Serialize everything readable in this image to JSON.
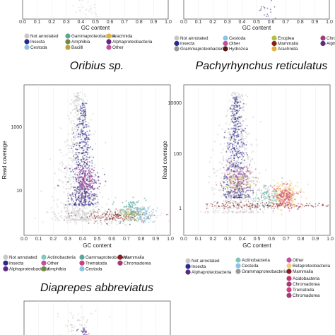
{
  "colors": {
    "Not annotated": "#c8c8c8",
    "Insecta": "#2b2a8c",
    "Cestoda": "#8fc3e6",
    "Gammaproteobacteria": "#5aa59a",
    "Amphibia": "#6e8a3a",
    "Bacilli": "#b7a43a",
    "Arachnida": "#e3b23c",
    "Alphaproteobacteria": "#5a2a80",
    "Other": "#c04fa0",
    "Actinobacteria": "#7ec8c0",
    "Trematoda": "#d04080",
    "Mammalia": "#8a1e1e",
    "Chromadorea": "#a03c78",
    "Enoplea": "#b0c040",
    "Hydrozoa": "#5a1a1a",
    "Betaproteobacteria": "#f0d080",
    "Acidobacteria": "#c23a6a"
  },
  "chart_data": [
    {
      "type": "scatter",
      "title": "",
      "xlabel": "GC content",
      "xticks": [
        "0.0",
        "0.1",
        "0.2",
        "0.3",
        "0.4",
        "0.5",
        "0.6",
        "0.7",
        "0.8",
        "0.9",
        "1.0"
      ],
      "legend": [
        "Not annotated",
        "Insecta",
        "Cestoda",
        "Gammaproteobacteria",
        "Amphibia",
        "Bacilli",
        "Arachnida",
        "Alphaproteobacteria",
        "Other"
      ]
    },
    {
      "type": "scatter",
      "title": "",
      "xlabel": "GC content",
      "xticks": [
        "0.0",
        "0.1",
        "0.2",
        "0.3",
        "0.4",
        "0.5",
        "0.6",
        "0.7",
        "0.8",
        "0.9",
        "1.0"
      ],
      "legend": [
        "Not annotated",
        "Insecta",
        "Grammaproteobacteria",
        "Cestoda",
        "Other",
        "Hydrozoa",
        "Enoplea",
        "Mammalia",
        "Arachnida",
        "Chromadorea",
        "Alphaproteobacteria"
      ]
    },
    {
      "type": "scatter",
      "title": "Oribius sp.",
      "xlabel": "GC content",
      "ylabel": "Read coverage",
      "yscale": "log",
      "xlim": [
        0,
        1
      ],
      "xticks": [
        "0.0",
        "0.1",
        "0.2",
        "0.3",
        "0.4",
        "0.5",
        "0.6",
        "0.7",
        "0.8",
        "0.9",
        "1.0"
      ],
      "yticks": [
        "10",
        "1000"
      ],
      "legend": [
        "Not annotated",
        "Insecta",
        "Alphaproteobacteria",
        "Actinobacteria",
        "Other",
        "Amphibia",
        "Gammaproteobacteria",
        "Trematoda",
        "Cestoda",
        "Mammalia",
        "Chromadorea"
      ]
    },
    {
      "type": "scatter",
      "title": "Pachyrhynchus reticulatus",
      "xlabel": "GC content",
      "ylabel": "Read coverage",
      "yscale": "log",
      "xlim": [
        0,
        1
      ],
      "xticks": [
        "0.0",
        "0.1",
        "0.2",
        "0.3",
        "0.4",
        "0.5",
        "0.6",
        "0.7",
        "0.8",
        "0.9",
        "1.0"
      ],
      "yticks": [
        "1",
        "100",
        "10000"
      ],
      "legend": [
        "Not annotated",
        "Insecta",
        "Alphaproteobacteria",
        "Actinobacteria",
        "Cestoda",
        "Grammaproteobacteria",
        "Other",
        "Betaproteobacteria",
        "Mammalia",
        "Acidobacteria",
        "Chromadorea",
        "Trematoda",
        "Chromadorea"
      ]
    },
    {
      "type": "scatter",
      "title": "Diaprepes abbreviatus",
      "xlabel": "",
      "ylabel": ""
    }
  ]
}
